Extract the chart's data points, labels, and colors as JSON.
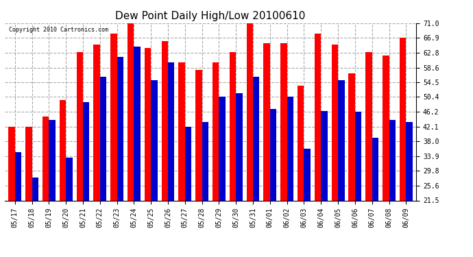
{
  "title": "Dew Point Daily High/Low 20100610",
  "copyright": "Copyright 2010 Cartronics.com",
  "dates": [
    "05/17",
    "05/18",
    "05/19",
    "05/20",
    "05/21",
    "05/22",
    "05/23",
    "05/24",
    "05/25",
    "05/26",
    "05/27",
    "05/28",
    "05/29",
    "05/30",
    "05/31",
    "06/01",
    "06/02",
    "06/03",
    "06/04",
    "06/05",
    "06/06",
    "06/07",
    "06/08",
    "06/09"
  ],
  "high": [
    42.0,
    42.0,
    45.0,
    49.5,
    63.0,
    65.0,
    68.0,
    72.0,
    64.0,
    66.0,
    60.0,
    58.0,
    60.0,
    63.0,
    71.0,
    65.5,
    65.5,
    53.5,
    68.0,
    65.0,
    57.0,
    63.0,
    62.0,
    67.0
  ],
  "low": [
    35.0,
    28.0,
    44.0,
    33.5,
    49.0,
    56.0,
    61.5,
    64.5,
    55.0,
    60.0,
    42.0,
    43.5,
    50.5,
    51.5,
    56.0,
    47.0,
    50.5,
    36.0,
    46.5,
    55.0,
    46.2,
    39.0,
    44.0,
    43.5
  ],
  "high_color": "#ff0000",
  "low_color": "#0000cc",
  "background_color": "#ffffff",
  "plot_bg_color": "#ffffff",
  "yticks": [
    21.5,
    25.6,
    29.8,
    33.9,
    38.0,
    42.1,
    46.2,
    50.4,
    54.5,
    58.6,
    62.8,
    66.9,
    71.0
  ],
  "ymin": 21.5,
  "ymax": 71.0,
  "bar_width": 0.38,
  "title_fontsize": 11,
  "copyright_fontsize": 6,
  "tick_fontsize": 7,
  "grid_color": "#aaaaaa",
  "grid_linestyle": "--"
}
